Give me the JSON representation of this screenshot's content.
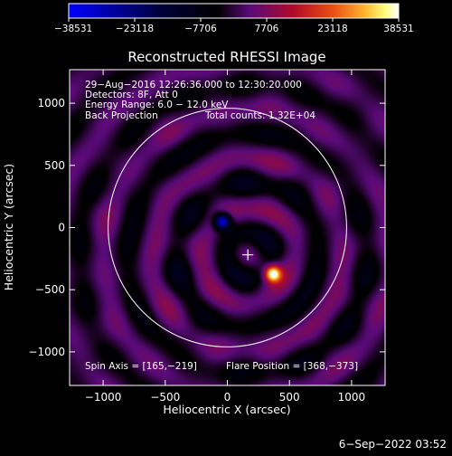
{
  "chart_data": {
    "type": "heatmap",
    "title": "Reconstructed RHESSI Image",
    "xlabel": "Heliocentric X (arcsec)",
    "ylabel": "Heliocentric Y (arcsec)",
    "xlim": [
      -1270,
      1270
    ],
    "ylim": [
      -1270,
      1270
    ],
    "xticks": [
      -1000,
      -500,
      0,
      500,
      1000
    ],
    "yticks": [
      -1000,
      -500,
      0,
      500,
      1000
    ],
    "xtick_labels": [
      "−1000",
      "−500",
      "0",
      "500",
      "1000"
    ],
    "ytick_labels": [
      "−1000",
      "−500",
      "0",
      "500",
      "1000"
    ],
    "colorbar": {
      "min": -38531,
      "max": 38531,
      "ticks": [
        -38531,
        -23118,
        -7706,
        7706,
        23118,
        38531
      ],
      "tick_labels": [
        "−38531",
        "−23118",
        "−7706",
        "7706",
        "23118",
        "38531"
      ],
      "colors": [
        "#0000ff",
        "#000000",
        "#5a0a78",
        "#b00a2a",
        "#e84e10",
        "#ffff80",
        "#ffffff"
      ]
    },
    "annotations": [
      "29−Aug−2016 12:26:36.000 to 12:30:20.000",
      "Detectors: 8F, Att 0",
      "Energy Range: 6.0 − 12.0 keV",
      "Back Projection",
      "Total counts: 1.32E+04"
    ],
    "spin_axis_label": "Spin Axis = [165,−219]",
    "flare_position_label": "Flare Position = [368,−373]",
    "spin_axis": [
      165,
      -219
    ],
    "flare_position": [
      368,
      -373
    ],
    "solar_radius": 960,
    "features": [
      {
        "kind": "positive",
        "x": 368,
        "y": -373,
        "peak": 38531
      },
      {
        "kind": "negative",
        "x": -40,
        "y": 50,
        "peak": -38531
      }
    ],
    "grid": false
  },
  "footer": {
    "date": "6−Sep−2022 03:52"
  }
}
